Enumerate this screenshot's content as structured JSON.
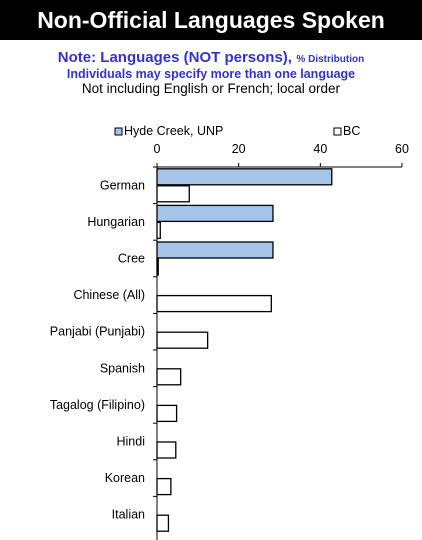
{
  "page": {
    "title": "Non-Official Languages Spoken",
    "note_main": "Note: Languages (NOT persons),",
    "note_small": "% Distribution",
    "note_line2": "Individuals may specify more than one language",
    "note_line3": "Not including English or French; local order"
  },
  "colors": {
    "series1_fill": "#a6c4ea",
    "series2_fill": "#ffffff",
    "title_bg": "#000000",
    "note_text": "#3333cc"
  },
  "chart_data": {
    "type": "bar",
    "orientation": "horizontal",
    "categories": [
      "German",
      "Hungarian",
      "Cree",
      "Chinese (All)",
      "Panjabi (Punjabi)",
      "Spanish",
      "Tagalog (Filipino)",
      "Hindi",
      "Korean",
      "Italian"
    ],
    "series": [
      {
        "name": "Hyde Creek, UNP",
        "values": [
          42.8,
          28.4,
          28.4,
          0,
          0,
          0,
          0,
          0,
          0,
          0
        ]
      },
      {
        "name": "BC",
        "values": [
          7.9,
          0.8,
          0.3,
          28.0,
          12.4,
          5.8,
          4.8,
          4.6,
          3.4,
          2.8
        ]
      }
    ],
    "xlim": [
      0,
      60
    ],
    "xticks": [
      0,
      20,
      40,
      60
    ],
    "legend_position": "top",
    "grid": false
  }
}
